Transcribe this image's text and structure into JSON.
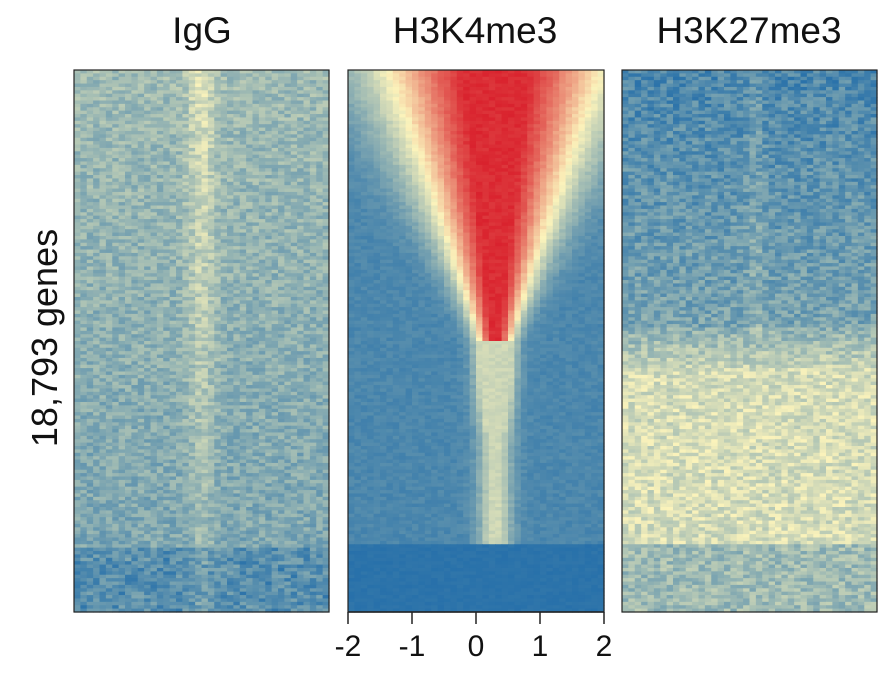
{
  "chart_data": {
    "type": "heatmap",
    "panels": [
      {
        "name": "IgG",
        "title": "IgG"
      },
      {
        "name": "H3K4me3",
        "title": "H3K4me3"
      },
      {
        "name": "H3K27me3",
        "title": "H3K27me3"
      }
    ],
    "ylabel": "18,793 genes",
    "gene_count": 18793,
    "x_ticks": [
      -2,
      -1,
      0,
      1,
      2
    ],
    "x_tick_labels": [
      "-2",
      "-1",
      "0",
      "1",
      "2"
    ],
    "xlim": [
      -2,
      2
    ],
    "x_axis_panel": "H3K4me3",
    "colorscale": [
      "#1565a8",
      "#fbf3bb",
      "#d9202c"
    ],
    "legend": "none",
    "grid": false
  }
}
